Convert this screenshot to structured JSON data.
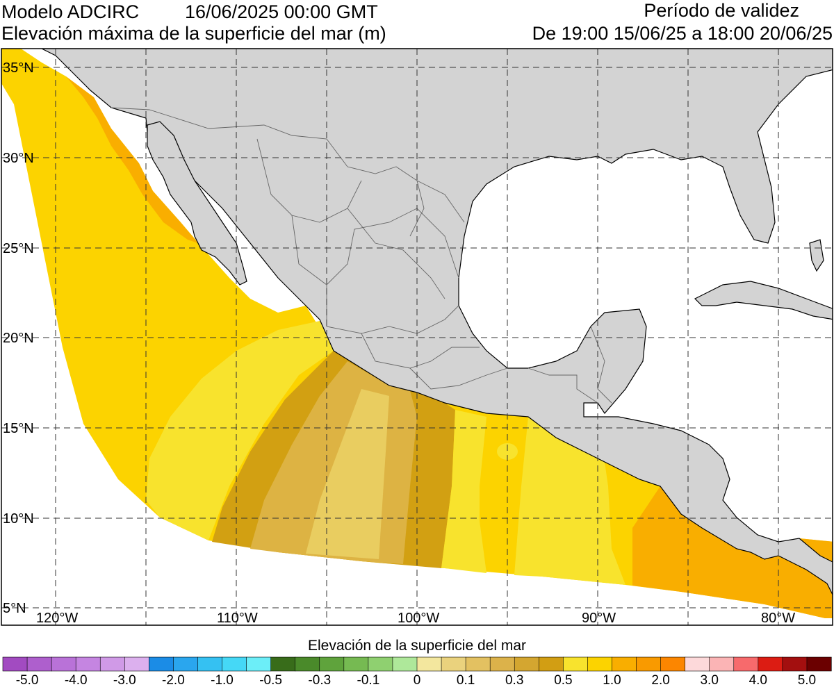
{
  "header": {
    "model": "Modelo ADCIRC",
    "datetime": "16/06/2025 00:00 GMT",
    "variable": "Elevación máxima de la superficie del mar (m)",
    "validity_title": "Período de validez",
    "validity_range": "De 19:00 15/06/25 a 18:00 20/06/25"
  },
  "map": {
    "lat_labels": [
      "35°N",
      "30°N",
      "25°N",
      "20°N",
      "15°N",
      "10°N",
      "5°N"
    ],
    "lon_labels": [
      "120°W",
      "110°W",
      "100°W",
      "90°W",
      "80°W"
    ],
    "land_color": "#d3d3d3",
    "ocean_color": "#ffffff",
    "grid_style": "dashed",
    "level_colors": {
      "0.2": "#e9cd60",
      "0.3": "#ddb343",
      "0.4": "#d2a012",
      "0.5": "#f8e32d",
      "1.0": "#fcd300",
      "1.5": "#f9ae00"
    }
  },
  "colorbar": {
    "title": "Elevación de la superficie del mar",
    "colors": [
      "#a24bc1",
      "#ae5fcd",
      "#b972d8",
      "#c585e1",
      "#d09ae7",
      "#dcb0ee",
      "#1b8ce6",
      "#2aa6ee",
      "#35c1f2",
      "#45d8f6",
      "#6ceef8",
      "#386c1a",
      "#4a8a2a",
      "#5fa33c",
      "#76ba52",
      "#8fd070",
      "#aee89a",
      "#f3e79e",
      "#ead27d",
      "#e3c161",
      "#dcb24a",
      "#d4a630",
      "#d29e13",
      "#f8e32d",
      "#fcd300",
      "#f9ae00",
      "#f99a00",
      "#fc8600",
      "#fdd9da",
      "#fbb4b5",
      "#f76a6c",
      "#dc1c13",
      "#a30f0f",
      "#6b0000"
    ],
    "tick_labels": [
      "-5.0",
      "-4.0",
      "-3.0",
      "-2.0",
      "-1.0",
      "-0.5",
      "-0.3",
      "-0.1",
      "0",
      "0.1",
      "0.3",
      "0.5",
      "1.0",
      "2.0",
      "3.0",
      "4.0",
      "5.0"
    ]
  }
}
